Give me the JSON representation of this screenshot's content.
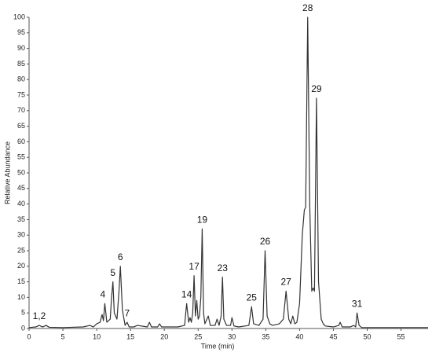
{
  "chart_data": {
    "type": "line",
    "x_label": "Time (min)",
    "y_label": "Relative Abundance",
    "color": "#333333",
    "xlim": [
      0,
      59
    ],
    "ylim": [
      0,
      100
    ],
    "xticks": [
      0,
      5,
      10,
      15,
      20,
      25,
      30,
      35,
      40,
      45,
      50,
      55
    ],
    "yticks": [
      0,
      5,
      10,
      15,
      20,
      25,
      30,
      35,
      40,
      45,
      50,
      55,
      60,
      65,
      70,
      75,
      80,
      85,
      90,
      95,
      100
    ],
    "x": [
      0,
      1,
      1.5,
      2,
      2.5,
      3,
      5,
      8,
      9,
      9.5,
      10,
      10.5,
      10.8,
      11,
      11.2,
      11.5,
      12,
      12.2,
      12.4,
      12.6,
      13,
      13.3,
      13.5,
      13.8,
      14.2,
      14.5,
      14.8,
      15.5,
      16,
      17.5,
      17.8,
      18.1,
      19,
      19.3,
      19.6,
      22,
      23,
      23.3,
      23.6,
      23.8,
      24,
      24.2,
      24.4,
      24.6,
      24.8,
      25,
      25.2,
      25.4,
      25.6,
      25.8,
      26,
      26.5,
      26.8,
      27.5,
      27.8,
      28.1,
      28.4,
      28.6,
      28.8,
      29.2,
      29.8,
      30,
      30.3,
      31,
      32.5,
      32.9,
      33.2,
      34,
      34.6,
      34.9,
      35.2,
      35.6,
      36,
      37,
      37.6,
      38,
      38.4,
      38.7,
      39,
      39.3,
      39.6,
      40,
      40.4,
      40.7,
      40.9,
      41.2,
      41.5,
      41.8,
      42,
      42.2,
      42.5,
      42.8,
      43.2,
      43.5,
      43.8,
      45,
      45.8,
      46,
      46.3,
      47.5,
      48,
      48.3,
      48.5,
      48.8,
      49.2,
      52,
      59
    ],
    "values": [
      0.3,
      0.5,
      1,
      0.5,
      1,
      0.4,
      0.3,
      0.5,
      1,
      0.5,
      1.5,
      2,
      4.5,
      2.5,
      8,
      2,
      3,
      10,
      15,
      5,
      3,
      12,
      20,
      6,
      1,
      2,
      0.5,
      0.5,
      1,
      0.5,
      2,
      0.5,
      0.5,
      1.5,
      0.5,
      0.5,
      1,
      8,
      2,
      3.5,
      2,
      5,
      17,
      4,
      9,
      3,
      4,
      10,
      32,
      5,
      1.5,
      4,
      1,
      1,
      3,
      1,
      4,
      16.5,
      3,
      1,
      1,
      3.5,
      0.8,
      0.5,
      1,
      7,
      1.5,
      1,
      3,
      25,
      4,
      1.5,
      1,
      1.5,
      3,
      12,
      3,
      1.5,
      4,
      1.5,
      2,
      8,
      30,
      38,
      39,
      100,
      40,
      12,
      13,
      12,
      74,
      15,
      3,
      1.5,
      0.8,
      0.5,
      1,
      2,
      0.5,
      0.5,
      1,
      0.5,
      5,
      1,
      0.3,
      0.3,
      0.3
    ],
    "annotations": [
      {
        "label": "1,2",
        "x": 1.5,
        "y": 1
      },
      {
        "label": "4",
        "x": 10.9,
        "y": 8
      },
      {
        "label": "5",
        "x": 12.4,
        "y": 15
      },
      {
        "label": "6",
        "x": 13.5,
        "y": 20
      },
      {
        "label": "7",
        "x": 14.5,
        "y": 2
      },
      {
        "label": "14",
        "x": 23.3,
        "y": 8
      },
      {
        "label": "17",
        "x": 24.4,
        "y": 17
      },
      {
        "label": "19",
        "x": 25.6,
        "y": 32
      },
      {
        "label": "23",
        "x": 28.6,
        "y": 16.5
      },
      {
        "label": "25",
        "x": 32.9,
        "y": 7
      },
      {
        "label": "26",
        "x": 34.9,
        "y": 25
      },
      {
        "label": "27",
        "x": 38,
        "y": 12
      },
      {
        "label": "28",
        "x": 41.2,
        "y": 100
      },
      {
        "label": "29",
        "x": 42.5,
        "y": 74
      },
      {
        "label": "31",
        "x": 48.5,
        "y": 5
      }
    ]
  }
}
